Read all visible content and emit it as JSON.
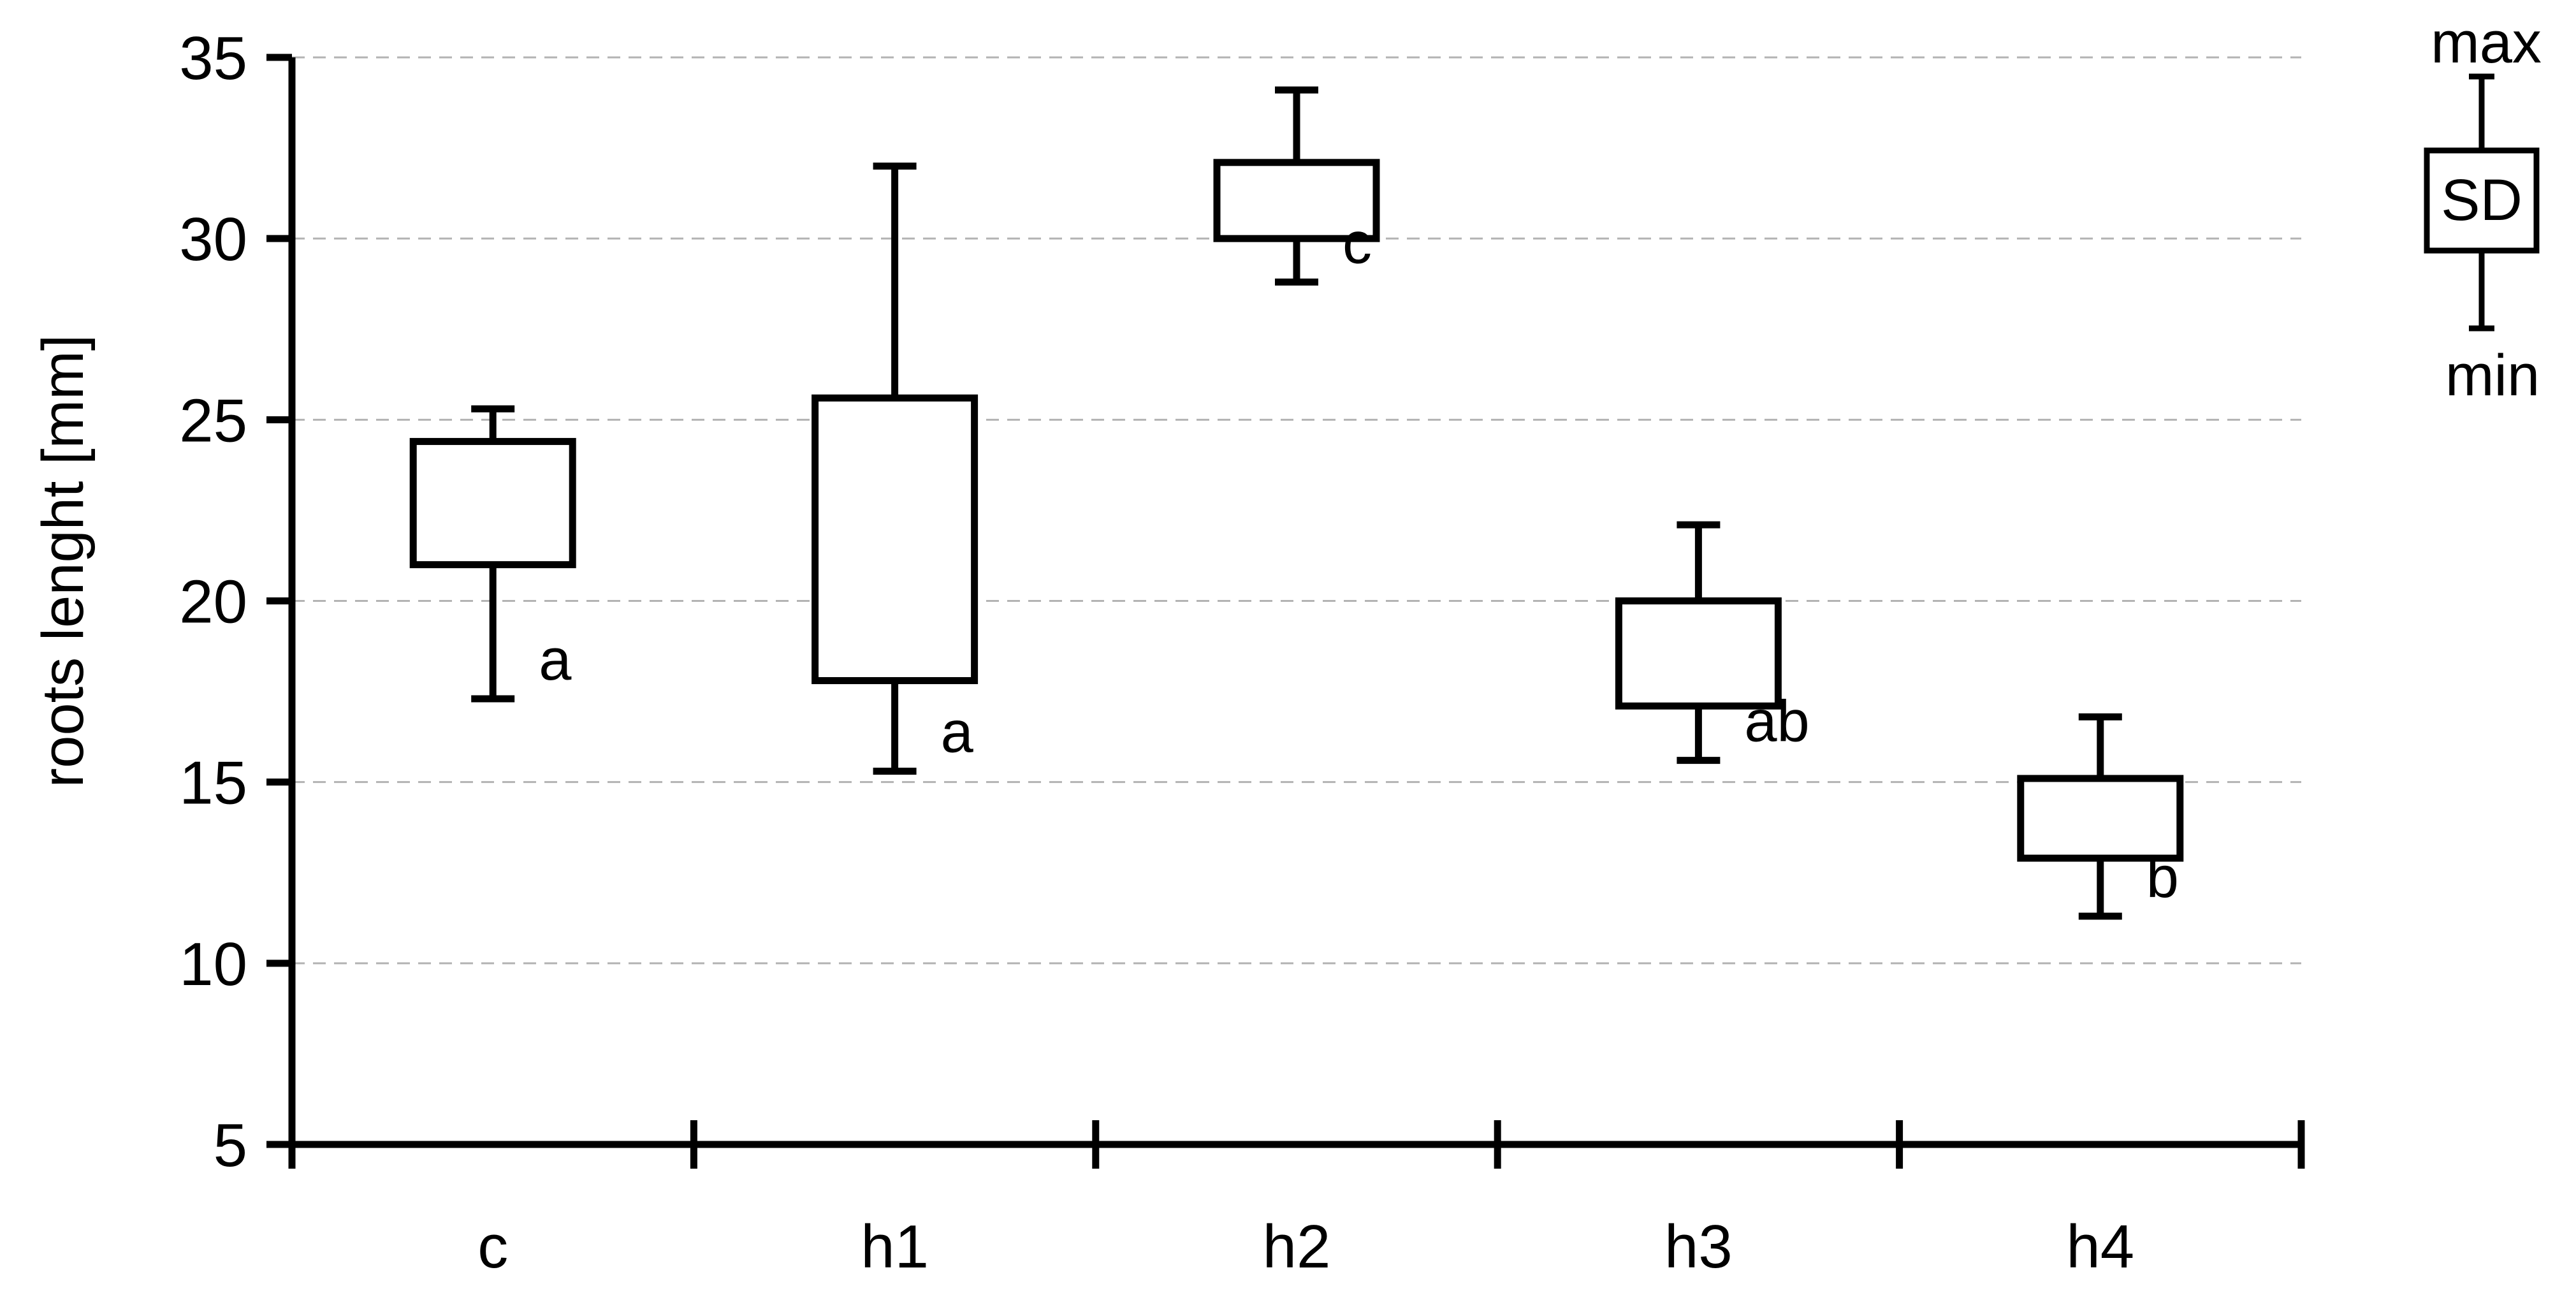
{
  "chart_data": {
    "type": "box",
    "title": "",
    "xlabel": "",
    "ylabel": "roots lenght [mm]",
    "ylim": [
      5,
      35
    ],
    "yticks": [
      5,
      10,
      15,
      20,
      25,
      30,
      35
    ],
    "grid": {
      "y": true,
      "style": "dashed"
    },
    "categories": [
      "c",
      "h1",
      "h2",
      "h3",
      "h4"
    ],
    "series": [
      {
        "category": "c",
        "min": 17.3,
        "box_low": 21.0,
        "box_high": 24.4,
        "max": 25.3,
        "significance": "a"
      },
      {
        "category": "h1",
        "min": 15.3,
        "box_low": 17.8,
        "box_high": 25.6,
        "max": 32.0,
        "significance": "a"
      },
      {
        "category": "h2",
        "min": 28.8,
        "box_low": 30.0,
        "box_high": 32.1,
        "max": 34.1,
        "significance": "c"
      },
      {
        "category": "h3",
        "min": 15.6,
        "box_low": 17.1,
        "box_high": 20.0,
        "max": 22.1,
        "significance": "ab"
      },
      {
        "category": "h4",
        "min": 11.3,
        "box_low": 12.9,
        "box_high": 15.1,
        "max": 16.8,
        "significance": "b"
      }
    ],
    "legend": {
      "placement": "top-right",
      "max_label": "max",
      "box_label": "SD",
      "min_label": "min"
    }
  }
}
